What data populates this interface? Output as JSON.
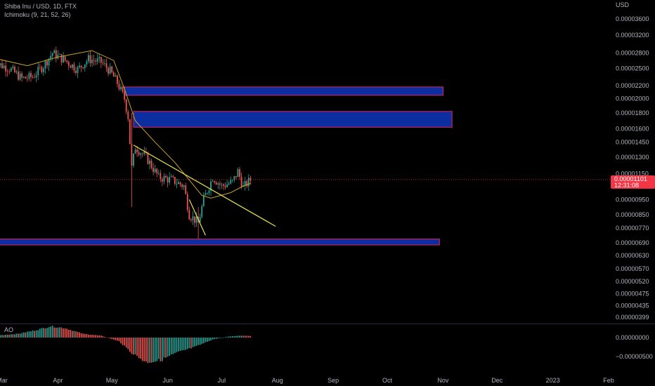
{
  "header": {
    "symbol_line": "Shiba Inu / USD, 1D, FTX",
    "indicator_line": "Ichimoku (9, 21, 52, 26)",
    "currency": "USD"
  },
  "oscillator": {
    "label": "AO",
    "tick_labels": [
      "0.00000000",
      "−0.00000500"
    ]
  },
  "price_badge": {
    "price": "0.00001101",
    "countdown": "12:31:08",
    "color": "#f23645"
  },
  "colors": {
    "up": "#26a69a",
    "down": "#ef5350",
    "zone_fill": "#0d2ea0",
    "zone_border": "#e0245e",
    "trendline": "#e8e34a",
    "ichimoku": "#c9a227"
  },
  "chart_data": {
    "type": "candlestick",
    "y_scale": "log",
    "y_tick_labels": [
      "0.00003600",
      "0.00003200",
      "0.00002800",
      "0.00002500",
      "0.00002200",
      "0.00002000",
      "0.00001800",
      "0.00001600",
      "0.00001450",
      "0.00001300",
      "0.00001150",
      "0.00000950",
      "0.00000850",
      "0.00000770",
      "0.00000690",
      "0.00000630",
      "0.00000570",
      "0.00000520",
      "0.00000475",
      "0.00000435",
      "0.00000399"
    ],
    "y_tick_values": [
      3.6e-05,
      3.2e-05,
      2.8e-05,
      2.5e-05,
      2.2e-05,
      2e-05,
      1.8e-05,
      1.6e-05,
      1.45e-05,
      1.3e-05,
      1.15e-05,
      9.5e-06,
      8.5e-06,
      7.7e-06,
      6.9e-06,
      6.3e-06,
      5.7e-06,
      5.2e-06,
      4.75e-06,
      4.35e-06,
      3.99e-06
    ],
    "x_tick_labels": [
      "Mar",
      "Apr",
      "May",
      "Jun",
      "Jul",
      "Aug",
      "Sep",
      "Oct",
      "Nov",
      "Dec",
      "2023",
      "Feb"
    ],
    "x_tick_dates": [
      "2022-03-01",
      "2022-04-01",
      "2022-05-01",
      "2022-06-01",
      "2022-07-01",
      "2022-08-01",
      "2022-09-01",
      "2022-10-01",
      "2022-11-01",
      "2022-12-01",
      "2023-01-01",
      "2023-02-01"
    ],
    "last_price": 1.101e-05,
    "price_path": [
      [
        "2022-02-24",
        2.62e-05
      ],
      [
        "2022-03-05",
        2.5e-05
      ],
      [
        "2022-03-12",
        2.32e-05
      ],
      [
        "2022-03-18",
        2.35e-05
      ],
      [
        "2022-03-24",
        2.55e-05
      ],
      [
        "2022-03-29",
        2.8e-05
      ],
      [
        "2022-04-05",
        2.65e-05
      ],
      [
        "2022-04-12",
        2.48e-05
      ],
      [
        "2022-04-18",
        2.68e-05
      ],
      [
        "2022-04-25",
        2.62e-05
      ],
      [
        "2022-04-30",
        2.45e-05
      ],
      [
        "2022-05-04",
        2.25e-05
      ],
      [
        "2022-05-08",
        2e-05
      ],
      [
        "2022-05-10",
        1.75e-05
      ],
      [
        "2022-05-12",
        1.2e-05
      ],
      [
        "2022-05-14",
        1.4e-05
      ],
      [
        "2022-05-20",
        1.3e-05
      ],
      [
        "2022-05-27",
        1.12e-05
      ],
      [
        "2022-06-03",
        1.1e-05
      ],
      [
        "2022-06-10",
        1.05e-05
      ],
      [
        "2022-06-13",
        8.5e-06
      ],
      [
        "2022-06-18",
        8e-06
      ],
      [
        "2022-06-21",
        9.5e-06
      ],
      [
        "2022-06-26",
        1.12e-05
      ],
      [
        "2022-07-01",
        1.05e-05
      ],
      [
        "2022-07-07",
        1.08e-05
      ],
      [
        "2022-07-10",
        1.17e-05
      ],
      [
        "2022-07-13",
        1.04e-05
      ],
      [
        "2022-07-17",
        1.1e-05
      ]
    ],
    "price_extremes": [
      [
        "2022-05-12",
        9e-06,
        1.8e-05
      ],
      [
        "2022-06-18",
        7.1e-06,
        9e-06
      ],
      [
        "2022-03-28",
        3e-05,
        2.4e-05
      ]
    ],
    "ichimoku_base_line": [
      [
        "2022-02-24",
        2.7e-05
      ],
      [
        "2022-03-15",
        2.55e-05
      ],
      [
        "2022-04-01",
        2.72e-05
      ],
      [
        "2022-04-20",
        2.85e-05
      ],
      [
        "2022-05-02",
        2.65e-05
      ],
      [
        "2022-05-08",
        2.15e-05
      ],
      [
        "2022-05-14",
        1.7e-05
      ],
      [
        "2022-05-25",
        1.45e-05
      ],
      [
        "2022-06-05",
        1.25e-05
      ],
      [
        "2022-06-20",
        9.8e-06
      ],
      [
        "2022-06-25",
        9.6e-06
      ],
      [
        "2022-07-06",
        1e-05
      ],
      [
        "2022-07-13",
        1.05e-05
      ],
      [
        "2022-07-17",
        1.07e-05
      ]
    ],
    "zones": [
      {
        "start": "2022-05-08",
        "end": "2022-11-01",
        "low": 2.05e-05,
        "high": 2.18e-05
      },
      {
        "start": "2022-05-13",
        "end": "2022-11-06",
        "low": 1.62e-05,
        "high": 1.82e-05
      },
      {
        "start": "2022-02-24",
        "end": "2022-10-30",
        "low": 6.8e-06,
        "high": 7.1e-06
      }
    ],
    "trendlines": [
      {
        "start": [
          "2022-05-13",
          1.42e-05
        ],
        "end": [
          "2022-07-31",
          7.8e-06
        ]
      },
      {
        "start": [
          "2022-06-13",
          9.5e-06
        ],
        "end": [
          "2022-06-22",
          7.3e-06
        ]
      }
    ],
    "awesome_oscillator": [
      [
        "2022-02-24",
        5e-07
      ],
      [
        "2022-03-10",
        1e-06
      ],
      [
        "2022-03-20",
        2e-06
      ],
      [
        "2022-03-28",
        3e-06
      ],
      [
        "2022-04-05",
        2.5e-06
      ],
      [
        "2022-04-15",
        1e-06
      ],
      [
        "2022-04-25",
        5e-07
      ],
      [
        "2022-05-05",
        -1e-06
      ],
      [
        "2022-05-12",
        -4e-06
      ],
      [
        "2022-05-20",
        -6.5e-06
      ],
      [
        "2022-05-28",
        -6e-06
      ],
      [
        "2022-06-06",
        -4e-06
      ],
      [
        "2022-06-16",
        -2.5e-06
      ],
      [
        "2022-06-26",
        -5e-07
      ],
      [
        "2022-07-05",
        3e-07
      ],
      [
        "2022-07-12",
        5e-07
      ],
      [
        "2022-07-17",
        4e-07
      ]
    ]
  }
}
